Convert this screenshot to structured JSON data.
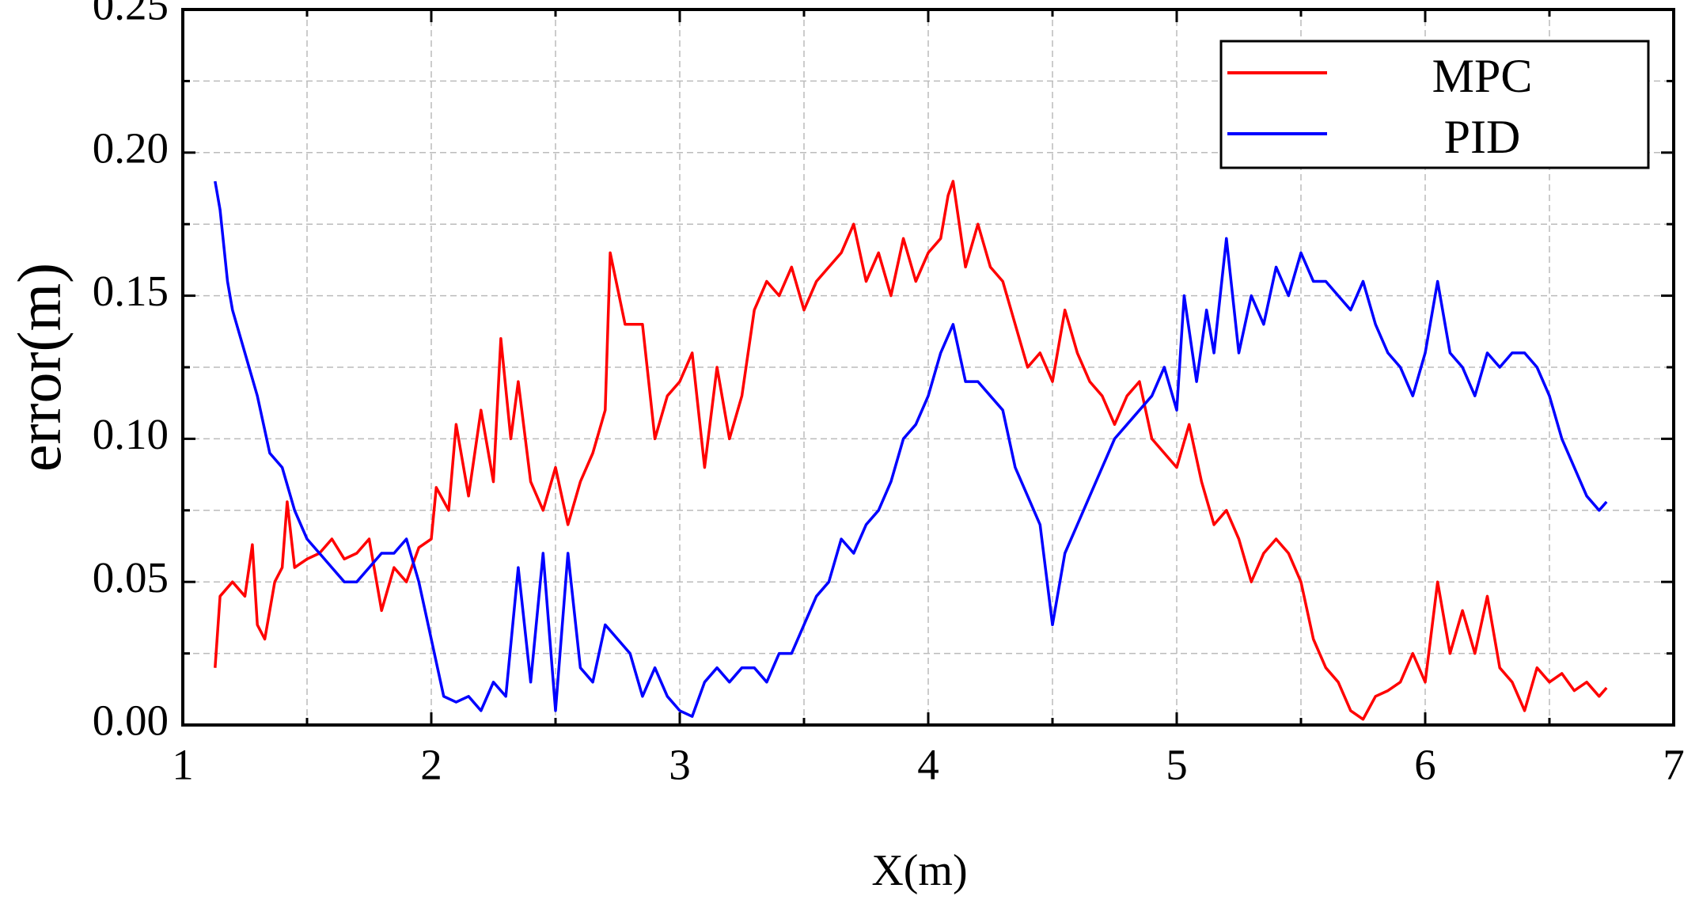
{
  "chart_data": {
    "type": "line",
    "xlabel": "X(m)",
    "ylabel": "error(m)",
    "xlim": [
      1,
      7
    ],
    "xticks": [
      1,
      2,
      3,
      4,
      5,
      6,
      7
    ],
    "ylim": [
      0,
      0.25
    ],
    "yticks": [
      {
        "value": 0,
        "label": "0.00"
      },
      {
        "value": 0.05,
        "label": "0.05"
      },
      {
        "value": 0.1,
        "label": "0.10"
      },
      {
        "value": 0.15,
        "label": "0.15"
      },
      {
        "value": 0.2,
        "label": "0.20"
      },
      {
        "value": 0.25,
        "label": "0.25"
      }
    ],
    "grid": true,
    "legend": "upper right",
    "series": [
      {
        "name": "MPC",
        "color": "#ff0000",
        "x": [
          1.13,
          1.15,
          1.2,
          1.25,
          1.28,
          1.3,
          1.33,
          1.37,
          1.4,
          1.42,
          1.45,
          1.5,
          1.55,
          1.6,
          1.65,
          1.7,
          1.75,
          1.8,
          1.85,
          1.9,
          1.95,
          2.0,
          2.02,
          2.07,
          2.1,
          2.15,
          2.2,
          2.25,
          2.28,
          2.32,
          2.35,
          2.4,
          2.45,
          2.5,
          2.55,
          2.6,
          2.65,
          2.7,
          2.72,
          2.78,
          2.85,
          2.9,
          2.95,
          3.0,
          3.05,
          3.1,
          3.15,
          3.2,
          3.25,
          3.3,
          3.35,
          3.4,
          3.45,
          3.5,
          3.55,
          3.6,
          3.65,
          3.7,
          3.75,
          3.8,
          3.85,
          3.9,
          3.95,
          4.0,
          4.05,
          4.08,
          4.1,
          4.15,
          4.2,
          4.25,
          4.3,
          4.35,
          4.4,
          4.45,
          4.5,
          4.55,
          4.6,
          4.65,
          4.7,
          4.75,
          4.8,
          4.85,
          4.9,
          4.95,
          5.0,
          5.05,
          5.1,
          5.15,
          5.2,
          5.25,
          5.3,
          5.35,
          5.4,
          5.45,
          5.5,
          5.55,
          5.6,
          5.65,
          5.7,
          5.75,
          5.8,
          5.85,
          5.9,
          5.95,
          6.0,
          6.05,
          6.1,
          6.15,
          6.2,
          6.25,
          6.3,
          6.35,
          6.4,
          6.45,
          6.5,
          6.55,
          6.6,
          6.65,
          6.7,
          6.73
        ],
        "values": [
          0.02,
          0.045,
          0.05,
          0.045,
          0.063,
          0.035,
          0.03,
          0.05,
          0.055,
          0.078,
          0.055,
          0.058,
          0.06,
          0.065,
          0.058,
          0.06,
          0.065,
          0.04,
          0.055,
          0.05,
          0.062,
          0.065,
          0.083,
          0.075,
          0.105,
          0.08,
          0.11,
          0.085,
          0.135,
          0.1,
          0.12,
          0.085,
          0.075,
          0.09,
          0.07,
          0.085,
          0.095,
          0.11,
          0.165,
          0.14,
          0.14,
          0.1,
          0.115,
          0.12,
          0.13,
          0.09,
          0.125,
          0.1,
          0.115,
          0.145,
          0.155,
          0.15,
          0.16,
          0.145,
          0.155,
          0.16,
          0.165,
          0.175,
          0.155,
          0.165,
          0.15,
          0.17,
          0.155,
          0.165,
          0.17,
          0.185,
          0.19,
          0.16,
          0.175,
          0.16,
          0.155,
          0.14,
          0.125,
          0.13,
          0.12,
          0.145,
          0.13,
          0.12,
          0.115,
          0.105,
          0.115,
          0.12,
          0.1,
          0.095,
          0.09,
          0.105,
          0.085,
          0.07,
          0.075,
          0.065,
          0.05,
          0.06,
          0.065,
          0.06,
          0.05,
          0.03,
          0.02,
          0.015,
          0.005,
          0.002,
          0.01,
          0.012,
          0.015,
          0.025,
          0.015,
          0.05,
          0.025,
          0.04,
          0.025,
          0.045,
          0.02,
          0.015,
          0.005,
          0.02,
          0.015,
          0.018,
          0.012,
          0.015,
          0.01,
          0.013
        ]
      },
      {
        "name": "PID",
        "color": "#0000ff",
        "x": [
          1.13,
          1.15,
          1.18,
          1.2,
          1.25,
          1.3,
          1.35,
          1.4,
          1.45,
          1.5,
          1.55,
          1.6,
          1.65,
          1.7,
          1.75,
          1.8,
          1.85,
          1.9,
          1.95,
          2.0,
          2.05,
          2.1,
          2.15,
          2.2,
          2.25,
          2.3,
          2.35,
          2.4,
          2.45,
          2.5,
          2.55,
          2.6,
          2.65,
          2.7,
          2.75,
          2.8,
          2.85,
          2.9,
          2.95,
          3.0,
          3.05,
          3.1,
          3.15,
          3.2,
          3.25,
          3.3,
          3.35,
          3.4,
          3.45,
          3.5,
          3.55,
          3.6,
          3.65,
          3.7,
          3.75,
          3.8,
          3.85,
          3.9,
          3.95,
          4.0,
          4.05,
          4.1,
          4.15,
          4.2,
          4.25,
          4.3,
          4.35,
          4.4,
          4.45,
          4.5,
          4.55,
          4.6,
          4.65,
          4.7,
          4.75,
          4.8,
          4.85,
          4.9,
          4.95,
          5.0,
          5.03,
          5.08,
          5.12,
          5.15,
          5.2,
          5.25,
          5.3,
          5.35,
          5.4,
          5.45,
          5.5,
          5.55,
          5.6,
          5.65,
          5.7,
          5.75,
          5.8,
          5.85,
          5.9,
          5.95,
          6.0,
          6.05,
          6.1,
          6.15,
          6.2,
          6.25,
          6.3,
          6.35,
          6.4,
          6.45,
          6.5,
          6.55,
          6.6,
          6.65,
          6.7,
          6.73
        ],
        "values": [
          0.19,
          0.18,
          0.155,
          0.145,
          0.13,
          0.115,
          0.095,
          0.09,
          0.075,
          0.065,
          0.06,
          0.055,
          0.05,
          0.05,
          0.055,
          0.06,
          0.06,
          0.065,
          0.05,
          0.03,
          0.01,
          0.008,
          0.01,
          0.005,
          0.015,
          0.01,
          0.055,
          0.015,
          0.06,
          0.005,
          0.06,
          0.02,
          0.015,
          0.035,
          0.03,
          0.025,
          0.01,
          0.02,
          0.01,
          0.005,
          0.003,
          0.015,
          0.02,
          0.015,
          0.02,
          0.02,
          0.015,
          0.025,
          0.025,
          0.035,
          0.045,
          0.05,
          0.065,
          0.06,
          0.07,
          0.075,
          0.085,
          0.1,
          0.105,
          0.115,
          0.13,
          0.14,
          0.12,
          0.12,
          0.115,
          0.11,
          0.09,
          0.08,
          0.07,
          0.035,
          0.06,
          0.07,
          0.08,
          0.09,
          0.1,
          0.105,
          0.11,
          0.115,
          0.125,
          0.11,
          0.15,
          0.12,
          0.145,
          0.13,
          0.17,
          0.13,
          0.15,
          0.14,
          0.16,
          0.15,
          0.165,
          0.155,
          0.155,
          0.15,
          0.145,
          0.155,
          0.14,
          0.13,
          0.125,
          0.115,
          0.13,
          0.155,
          0.13,
          0.125,
          0.115,
          0.13,
          0.125,
          0.13,
          0.13,
          0.125,
          0.115,
          0.1,
          0.09,
          0.08,
          0.075,
          0.078
        ]
      }
    ]
  }
}
